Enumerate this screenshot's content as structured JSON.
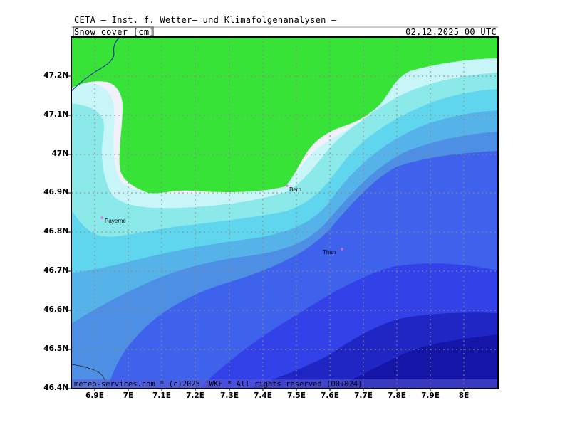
{
  "header": {
    "title": "CETA — Inst. f. Wetter— und Klimafolgenanalysen —",
    "parameter": "Snow cover [cm]",
    "datetime": "02.12.2025 00 UTC"
  },
  "axes": {
    "lat_labels": [
      "47.2N",
      "47.1N",
      "47N",
      "46.9N",
      "46.8N",
      "46.7N",
      "46.6N",
      "46.5N",
      "46.4N"
    ],
    "lon_labels": [
      "6.9E",
      "7E",
      "7.1E",
      "7.2E",
      "7.3E",
      "7.4E",
      "7.5E",
      "7.6E",
      "7.7E",
      "7.8E",
      "7.9E",
      "8E"
    ]
  },
  "cities": [
    {
      "name": "Bern"
    },
    {
      "name": "Payerne"
    },
    {
      "name": "Thun"
    }
  ],
  "footer": "meteo-services.com * (c)2025 IWKF * All rights reserved (00+024)",
  "colors": {
    "no_snow": "#36e336",
    "band1": "#f1f1fb",
    "band2": "#c8f6f8",
    "band3": "#8ce9ea",
    "band4": "#60d6ee",
    "band5": "#56b3ea",
    "band6": "#4e8fe6",
    "band7": "#3f62ec",
    "band8": "#3341e8",
    "band9": "#2026c3",
    "band10": "#1516a8"
  }
}
